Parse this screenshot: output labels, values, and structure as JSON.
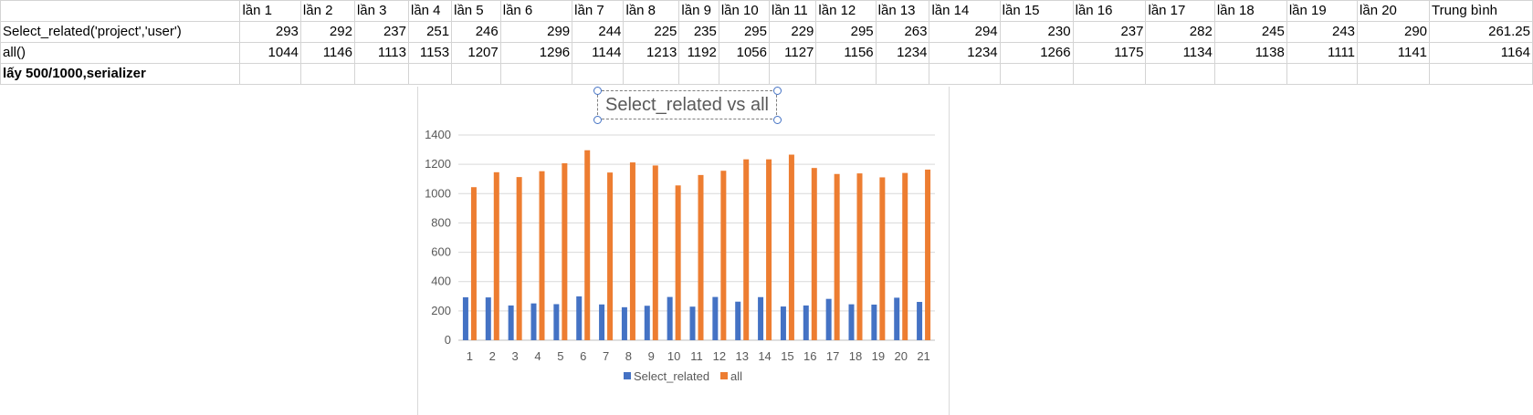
{
  "sheet": {
    "header_row": [
      "",
      "lần 1",
      "lần 2",
      "lần 3",
      "lần 4",
      "lần 5",
      "lần 6",
      "lần 7",
      "lần 8",
      "lần 9",
      "lần 10",
      "lần 11",
      "lần 12",
      "lần 13",
      "lần 14",
      "lần 15",
      "lần 16",
      "lần 17",
      "lần 18",
      "lần 19",
      "lần 20",
      "Trung  bình"
    ],
    "rows": [
      [
        "Select_related('project','user')",
        "293",
        "292",
        "237",
        "251",
        "246",
        "299",
        "244",
        "225",
        "235",
        "295",
        "229",
        "295",
        "263",
        "294",
        "230",
        "237",
        "282",
        "245",
        "243",
        "290",
        "261.25"
      ],
      [
        "all()",
        "1044",
        "1146",
        "1113",
        "1153",
        "1207",
        "1296",
        "1144",
        "1213",
        "1192",
        "1056",
        "1127",
        "1156",
        "1234",
        "1234",
        "1266",
        "1175",
        "1134",
        "1138",
        "1111",
        "1141",
        "1164"
      ],
      [
        "lấy 500/1000,serializer",
        "",
        "",
        "",
        "",
        "",
        "",
        "",
        "",
        "",
        "",
        "",
        "",
        "",
        "",
        "",
        "",
        "",
        "",
        "",
        "",
        ""
      ]
    ]
  },
  "chart_data": {
    "type": "bar",
    "title": "Select_related vs all",
    "categories": [
      "1",
      "2",
      "3",
      "4",
      "5",
      "6",
      "7",
      "8",
      "9",
      "10",
      "11",
      "12",
      "13",
      "14",
      "15",
      "16",
      "17",
      "18",
      "19",
      "20",
      "21"
    ],
    "series": [
      {
        "name": "Select_related",
        "color": "#4472c4",
        "values": [
          293,
          292,
          237,
          251,
          246,
          299,
          244,
          225,
          235,
          295,
          229,
          295,
          263,
          294,
          230,
          237,
          282,
          245,
          243,
          290,
          261.25
        ]
      },
      {
        "name": "all",
        "color": "#ed7d31",
        "values": [
          1044,
          1146,
          1113,
          1153,
          1207,
          1296,
          1144,
          1213,
          1192,
          1056,
          1127,
          1156,
          1234,
          1234,
          1266,
          1175,
          1134,
          1138,
          1111,
          1141,
          1164
        ]
      }
    ],
    "yticks": [
      "0",
      "200",
      "400",
      "600",
      "800",
      "1000",
      "1200",
      "1400"
    ],
    "ylim": [
      0,
      1400
    ],
    "grid": true,
    "legend": "bottom"
  }
}
